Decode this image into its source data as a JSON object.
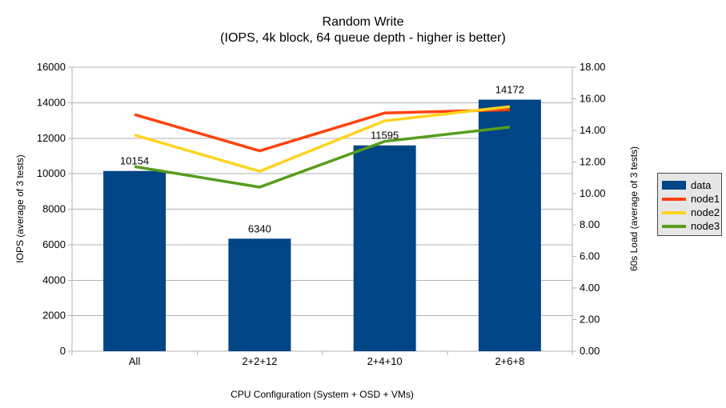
{
  "title": "Random Write",
  "subtitle": "(IOPS, 4k block, 64 queue depth - higher is better)",
  "colors": {
    "bar": "#004586",
    "node1": "#ff420e",
    "node2": "#ffd320",
    "node3": "#579d1c",
    "axis": "#b3b3b3",
    "text": "#000000",
    "legend_bg": "#e6e6e6",
    "legend_border": "#4a4a4a",
    "background": "#ffffff"
  },
  "chart_data": {
    "type": "combo-bar-line",
    "title": "Random Write",
    "subtitle": "(IOPS, 4k block, 64 queue depth - higher is better)",
    "categories": [
      "All",
      "2+2+12",
      "2+4+10",
      "2+6+8"
    ],
    "bar_series": {
      "name": "data",
      "axis": "left",
      "color": "#004586",
      "values": [
        10154,
        6340,
        11595,
        14172
      ],
      "value_labels": [
        "10154",
        "6340",
        "11595",
        "14172"
      ]
    },
    "line_series": [
      {
        "name": "node1",
        "axis": "right",
        "color": "#ff420e",
        "values": [
          15.0,
          12.7,
          15.1,
          15.3
        ]
      },
      {
        "name": "node2",
        "axis": "right",
        "color": "#ffd320",
        "values": [
          13.7,
          11.4,
          14.6,
          15.5
        ]
      },
      {
        "name": "node3",
        "axis": "right",
        "color": "#579d1c",
        "values": [
          11.7,
          10.4,
          13.3,
          14.2
        ]
      }
    ],
    "left_axis": {
      "label": "IOPS (average of 3 tests)",
      "min": 0,
      "max": 16000,
      "step": 2000,
      "tick_labels": [
        "0",
        "2000",
        "4000",
        "6000",
        "8000",
        "10000",
        "12000",
        "14000",
        "16000"
      ]
    },
    "right_axis": {
      "label": "60s Load (average of 3 tests)",
      "min": 0,
      "max": 18,
      "step": 2,
      "tick_labels": [
        "0.00",
        "2.00",
        "4.00",
        "6.00",
        "8.00",
        "10.00",
        "12.00",
        "14.00",
        "16.00",
        "18.00"
      ]
    },
    "x_axis": {
      "label": "CPU Configuration (System + OSD + VMs)"
    },
    "grid": true,
    "legend": {
      "position": "right",
      "entries": [
        "data",
        "node1",
        "node2",
        "node3"
      ]
    }
  }
}
